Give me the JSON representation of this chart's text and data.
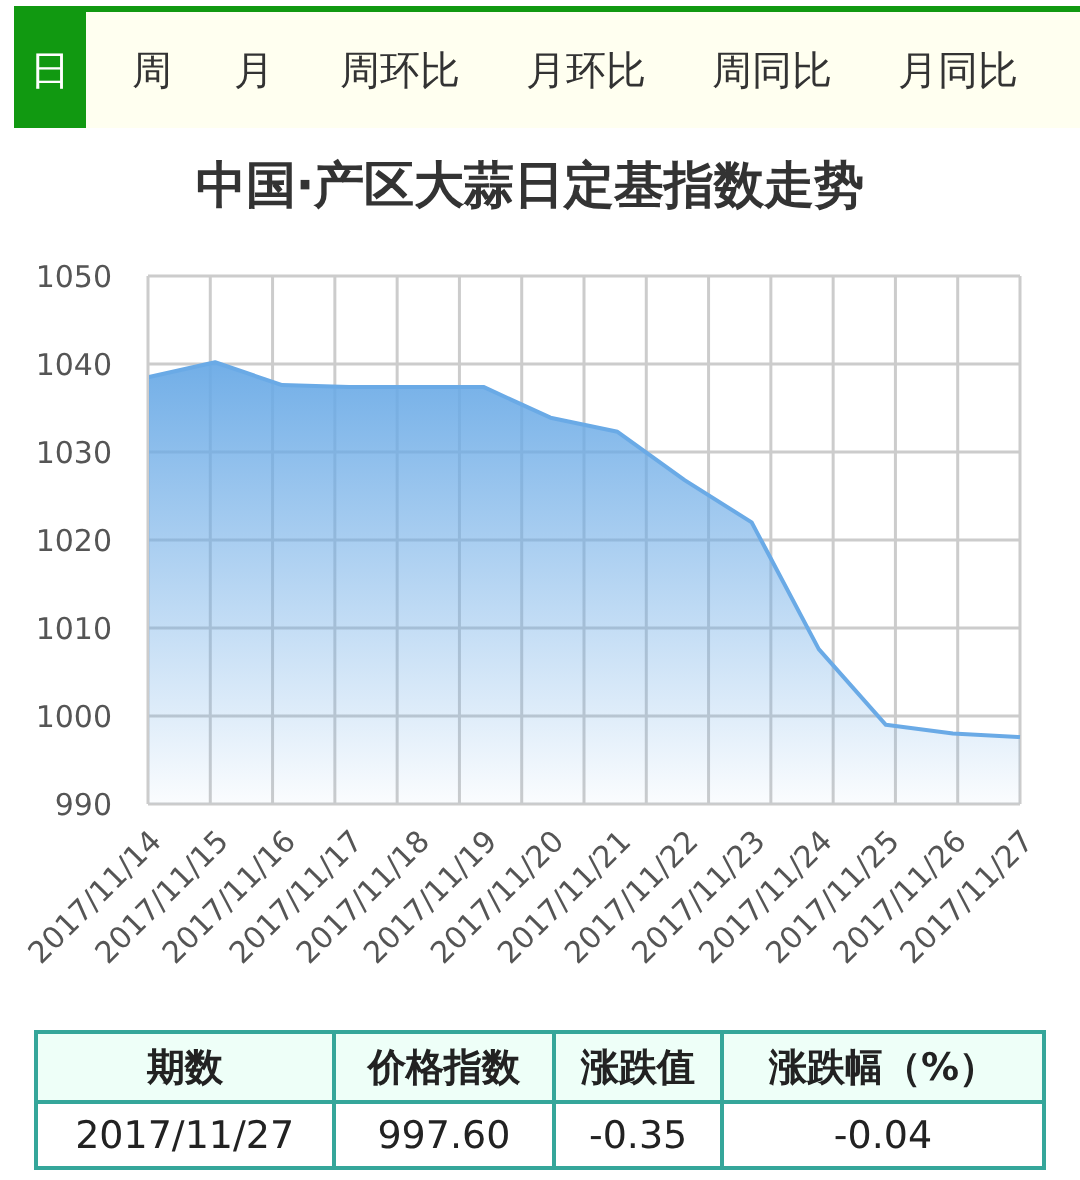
{
  "chart_data": {
    "type": "area",
    "title": "中国·产区大蒜日定基指数走势",
    "categories": [
      "2017/11/14",
      "2017/11/15",
      "2017/11/16",
      "2017/11/17",
      "2017/11/18",
      "2017/11/19",
      "2017/11/20",
      "2017/11/21",
      "2017/11/22",
      "2017/11/23",
      "2017/11/24",
      "2017/11/25",
      "2017/11/26",
      "2017/11/27"
    ],
    "values": [
      1038.5,
      1040.2,
      1037.6,
      1037.4,
      1037.4,
      1037.4,
      1033.9,
      1032.3,
      1026.8,
      1022.0,
      1007.6,
      999.0,
      998.0,
      997.6
    ],
    "color": "#6aaae6",
    "ylim": [
      990,
      1050
    ],
    "yticks": [
      990,
      1000,
      1010,
      1020,
      1030,
      1040,
      1050
    ],
    "grid": true,
    "annotations": [
      "日",
      "周",
      "月",
      "周环比",
      "月环比",
      "周同比",
      "月同比",
      "期数",
      "价格指数",
      "涨跌值",
      "涨跌幅（%）",
      "2017/11/27",
      "997.60",
      "-0.35",
      "-0.04"
    ]
  }
}
